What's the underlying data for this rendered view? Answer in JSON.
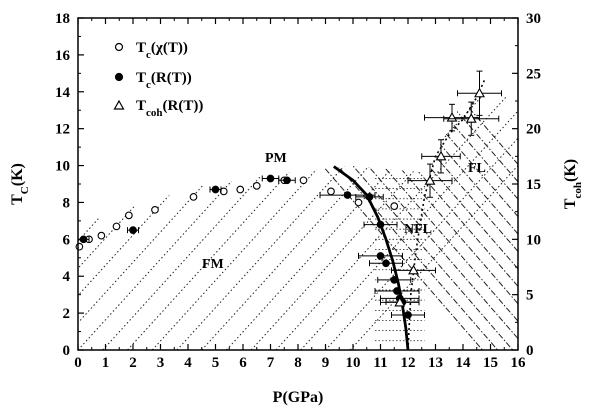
{
  "chart_data": {
    "type": "scatter",
    "xlabel": "P(GPa)",
    "ylabel_left": "T_C(K)",
    "ylabel_right": "T_coh(K)",
    "xlim": [
      0,
      16
    ],
    "ylim_left": [
      0,
      18
    ],
    "ylim_right": [
      0,
      30
    ],
    "x_ticks": [
      "0",
      "1",
      "2",
      "3",
      "4",
      "5",
      "6",
      "7",
      "8",
      "9",
      "10",
      "11",
      "12",
      "13",
      "14",
      "15",
      "16"
    ],
    "y_left_ticks": [
      "0",
      "2",
      "4",
      "6",
      "8",
      "10",
      "12",
      "14",
      "16",
      "18"
    ],
    "y_right_ticks": [
      "0",
      "5",
      "10",
      "15",
      "20",
      "25",
      "30"
    ],
    "legend": [
      {
        "symbol": "open-circle",
        "label": "T_c(χ(T))"
      },
      {
        "symbol": "filled-circle",
        "label": "T_c(R(T))"
      },
      {
        "symbol": "open-triangle",
        "label": "T_coh(R(T))"
      }
    ],
    "regions": [
      "PM",
      "FM",
      "NFL",
      "FL"
    ],
    "series": [
      {
        "name": "T_c(χ(T))",
        "marker": "open-circle",
        "axis": "left",
        "points": [
          {
            "x": 0.05,
            "y": 5.6
          },
          {
            "x": 0.4,
            "y": 6.0
          },
          {
            "x": 0.85,
            "y": 6.2
          },
          {
            "x": 1.4,
            "y": 6.7
          },
          {
            "x": 1.85,
            "y": 7.3
          },
          {
            "x": 2.8,
            "y": 7.6
          },
          {
            "x": 4.2,
            "y": 8.3
          },
          {
            "x": 5.3,
            "y": 8.6
          },
          {
            "x": 5.9,
            "y": 8.7
          },
          {
            "x": 6.5,
            "y": 8.9
          },
          {
            "x": 7.5,
            "y": 9.2
          },
          {
            "x": 8.2,
            "y": 9.2
          },
          {
            "x": 9.2,
            "y": 8.6
          },
          {
            "x": 10.2,
            "y": 8.0
          },
          {
            "x": 11.5,
            "y": 7.8
          }
        ]
      },
      {
        "name": "T_c(R(T))",
        "marker": "filled-circle",
        "axis": "left",
        "points": [
          {
            "x": 0.2,
            "y": 6.0,
            "xerr": 0.2
          },
          {
            "x": 2.0,
            "y": 6.5,
            "xerr": 0.2
          },
          {
            "x": 5.0,
            "y": 8.7,
            "xerr": 0.2
          },
          {
            "x": 7.0,
            "y": 9.3,
            "xerr": 0.3
          },
          {
            "x": 7.6,
            "y": 9.2,
            "xerr": 0.3
          },
          {
            "x": 9.8,
            "y": 8.4,
            "xerr": 1.0
          },
          {
            "x": 10.6,
            "y": 8.3,
            "xerr": 0.5
          },
          {
            "x": 11.0,
            "y": 6.8,
            "xerr": 0.6
          },
          {
            "x": 11.0,
            "y": 5.1,
            "xerr": 0.8
          },
          {
            "x": 11.2,
            "y": 4.7,
            "xerr": 0.6
          },
          {
            "x": 11.5,
            "y": 3.8,
            "xerr": 0.6
          },
          {
            "x": 11.6,
            "y": 3.2,
            "xerr": 0.8
          },
          {
            "x": 11.7,
            "y": 2.8,
            "xerr": 0.7
          },
          {
            "x": 11.8,
            "y": 2.6,
            "xerr": 0.6
          },
          {
            "x": 12.0,
            "y": 1.9,
            "xerr": 0.6
          }
        ]
      },
      {
        "name": "T_coh(R(T))",
        "marker": "open-triangle",
        "axis": "right",
        "points": [
          {
            "x": 11.7,
            "y": 4.3,
            "xerr": 0.7
          },
          {
            "x": 12.2,
            "y": 7.2,
            "xerr": 0.8
          },
          {
            "x": 12.8,
            "y": 15.3,
            "xerr": 0.8,
            "yerr": 1.5
          },
          {
            "x": 13.2,
            "y": 17.5,
            "xerr": 0.7,
            "yerr": 1.5
          },
          {
            "x": 13.6,
            "y": 21.0,
            "xerr": 1.0,
            "yerr": 1.2
          },
          {
            "x": 14.3,
            "y": 20.9,
            "xerr": 1.0,
            "yerr": 1.5
          },
          {
            "x": 14.6,
            "y": 23.2,
            "xerr": 0.8,
            "yerr": 2.0
          }
        ]
      }
    ],
    "boundary_curve": [
      {
        "x": 9.3,
        "y": 9.95
      },
      {
        "x": 10.0,
        "y": 9.2
      },
      {
        "x": 10.5,
        "y": 8.4
      },
      {
        "x": 10.9,
        "y": 7.2
      },
      {
        "x": 11.2,
        "y": 6.0
      },
      {
        "x": 11.45,
        "y": 4.8
      },
      {
        "x": 11.65,
        "y": 3.6
      },
      {
        "x": 11.8,
        "y": 2.4
      },
      {
        "x": 11.92,
        "y": 1.2
      },
      {
        "x": 12.0,
        "y": 0
      }
    ],
    "coherence_curve": [
      {
        "x": 12.0,
        "y": 0
      },
      {
        "x": 12.1,
        "y": 3.0
      },
      {
        "x": 12.3,
        "y": 5.5
      },
      {
        "x": 12.6,
        "y": 8.3
      },
      {
        "x": 13.0,
        "y": 10.5
      },
      {
        "x": 13.5,
        "y": 11.7
      },
      {
        "x": 14.0,
        "y": 12.5
      },
      {
        "x": 14.5,
        "y": 13.7
      },
      {
        "x": 14.8,
        "y": 14.7
      }
    ],
    "grid": false
  },
  "colors": {
    "ink": "#000000",
    "hatch": "#222222",
    "background": "#ffffff"
  }
}
